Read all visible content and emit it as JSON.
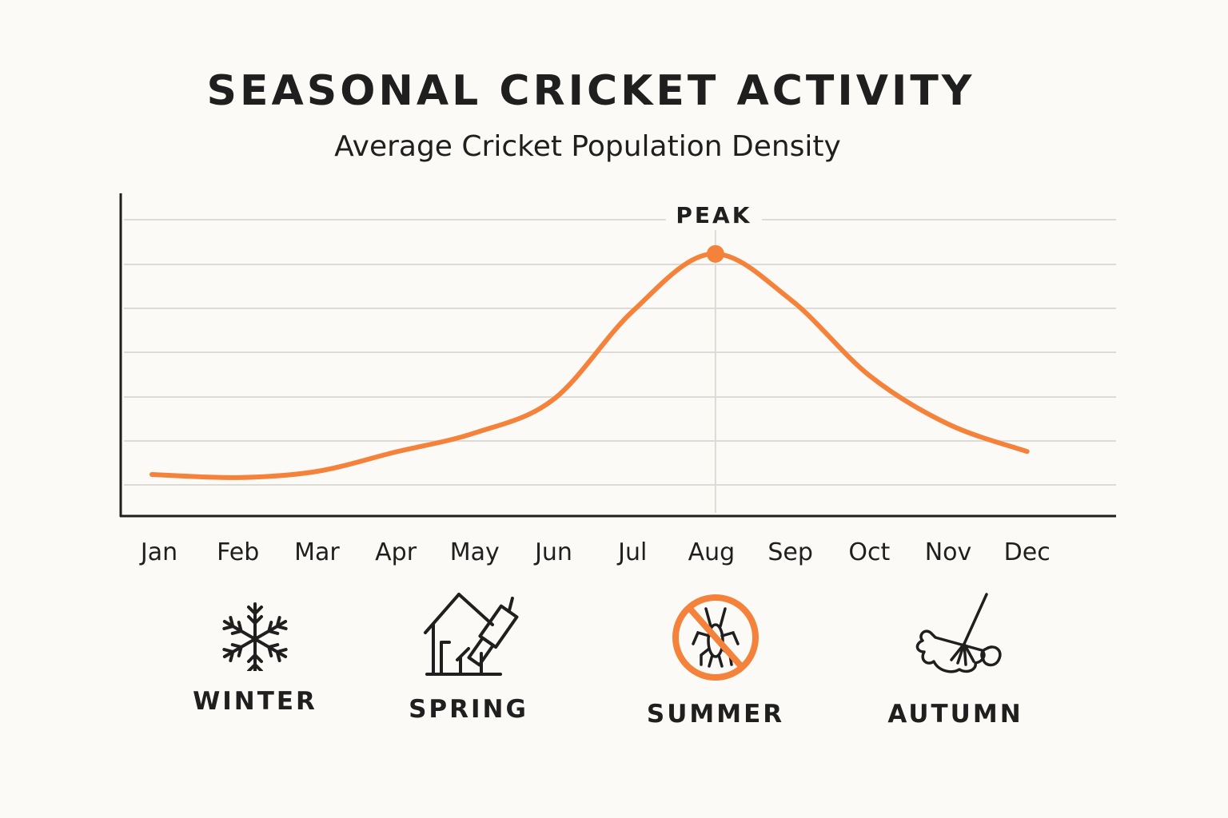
{
  "chart_data": {
    "type": "line",
    "title": "SEASONAL CRICKET ACTIVITY",
    "subtitle": "Average Cricket Population Density",
    "xlabel": "",
    "ylabel": "",
    "categories": [
      "Jan",
      "Feb",
      "Mar",
      "Apr",
      "May",
      "Jun",
      "Jul",
      "Aug",
      "Sep",
      "Oct",
      "Nov",
      "Dec"
    ],
    "series": [
      {
        "values": [
          0.94,
          0.87,
          1.01,
          1.45,
          1.88,
          2.64,
          4.63,
          5.93,
          4.9,
          3.18,
          2.08,
          1.46
        ],
        "color": "#f5823a"
      }
    ],
    "ylim": [
      0,
      7.3
    ],
    "y_ticks_labeled": false,
    "grid": true,
    "annotation": {
      "label": "PEAK",
      "category": "Aug"
    }
  },
  "seasons": [
    {
      "label": "WINTER",
      "icon": "snowflake-icon"
    },
    {
      "label": "SPRING",
      "icon": "house-caulk-gun-icon"
    },
    {
      "label": "SUMMER",
      "icon": "no-cricket-icon"
    },
    {
      "label": "AUTUMN",
      "icon": "leaves-rake-icon"
    }
  ],
  "colors": {
    "accent": "#f5823a",
    "ink": "#1f1f1f",
    "grid": "#dddbd6",
    "background": "#fbfaf6"
  }
}
